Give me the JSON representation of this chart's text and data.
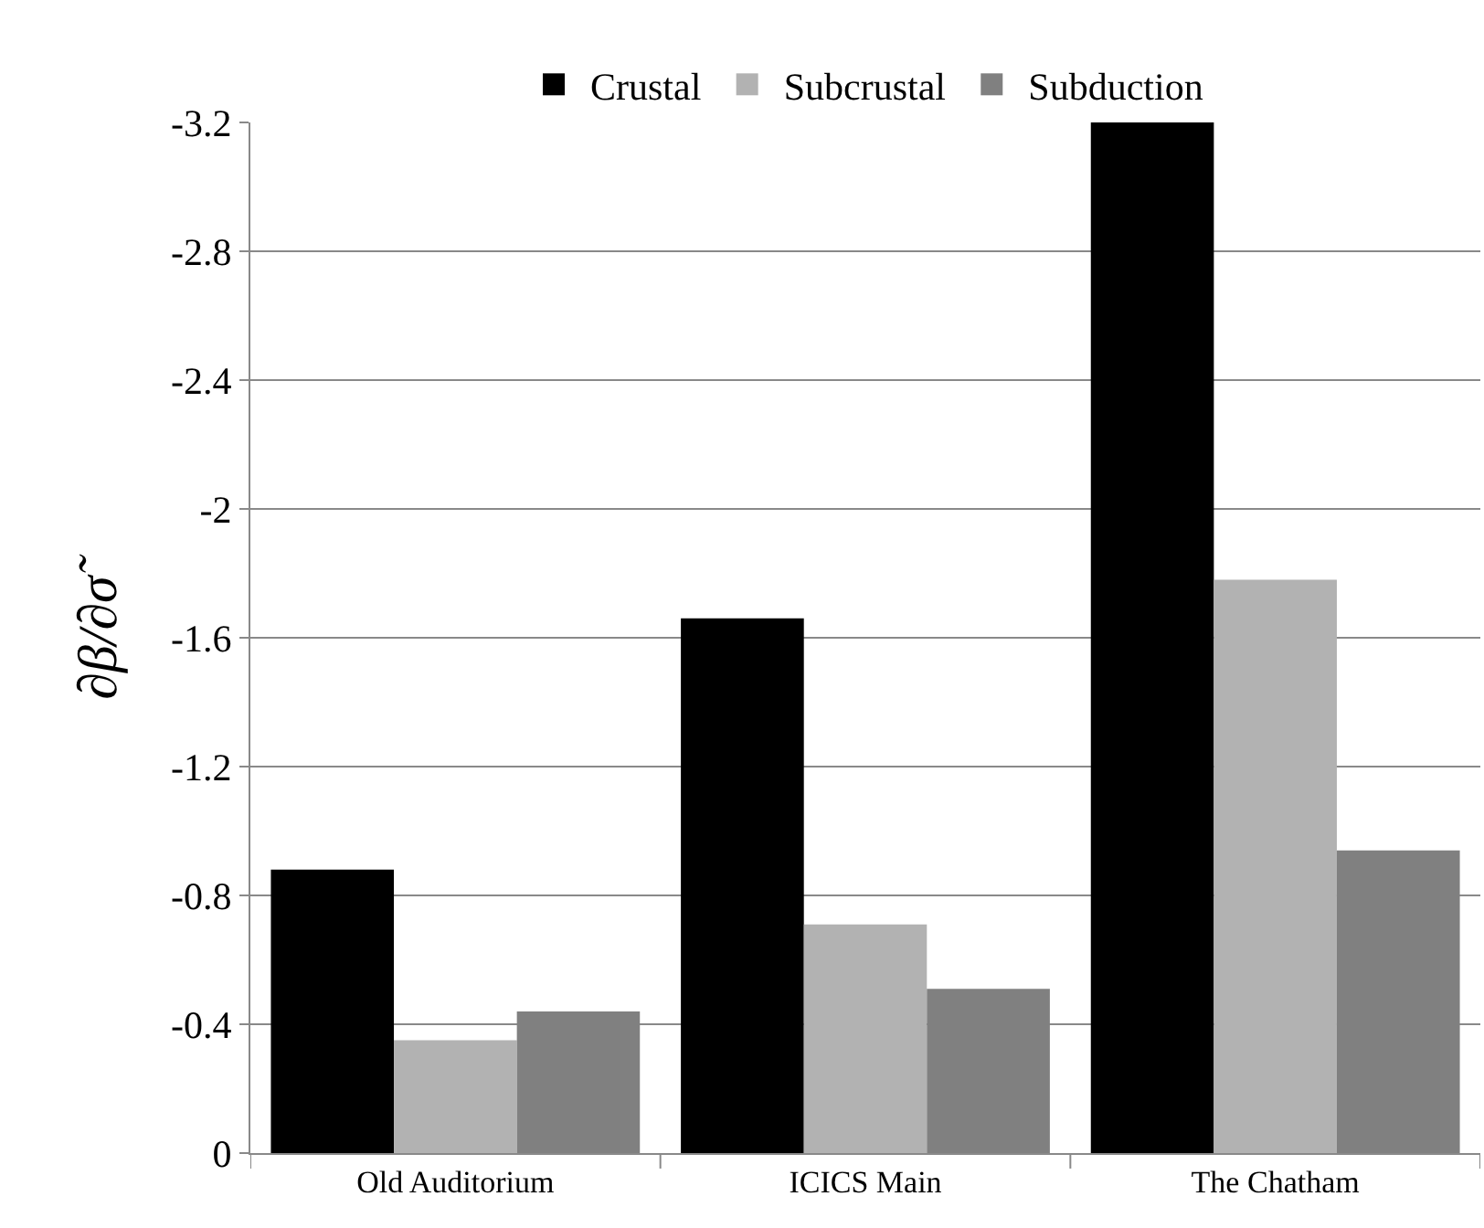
{
  "chart_data": {
    "type": "bar",
    "ylabel": "∂β/∂σ̃",
    "categories": [
      "Old Auditorium",
      "ICICS Main",
      "The Chatham"
    ],
    "series": [
      {
        "name": "Crustal",
        "color": "#000000",
        "values": [
          -0.88,
          -1.66,
          -3.2
        ]
      },
      {
        "name": "Subcrustal",
        "color": "#b2b2b2",
        "values": [
          -0.35,
          -0.71,
          -1.78
        ]
      },
      {
        "name": "Subduction",
        "color": "#808080",
        "values": [
          -0.44,
          -0.51,
          -0.94
        ]
      }
    ],
    "ylim": [
      0,
      -3.2
    ],
    "yticks": [
      0,
      -0.4,
      -0.8,
      -1.2,
      -1.6,
      -2,
      -2.4,
      -2.8,
      -3.2
    ],
    "grid": "y",
    "legend": "top"
  }
}
